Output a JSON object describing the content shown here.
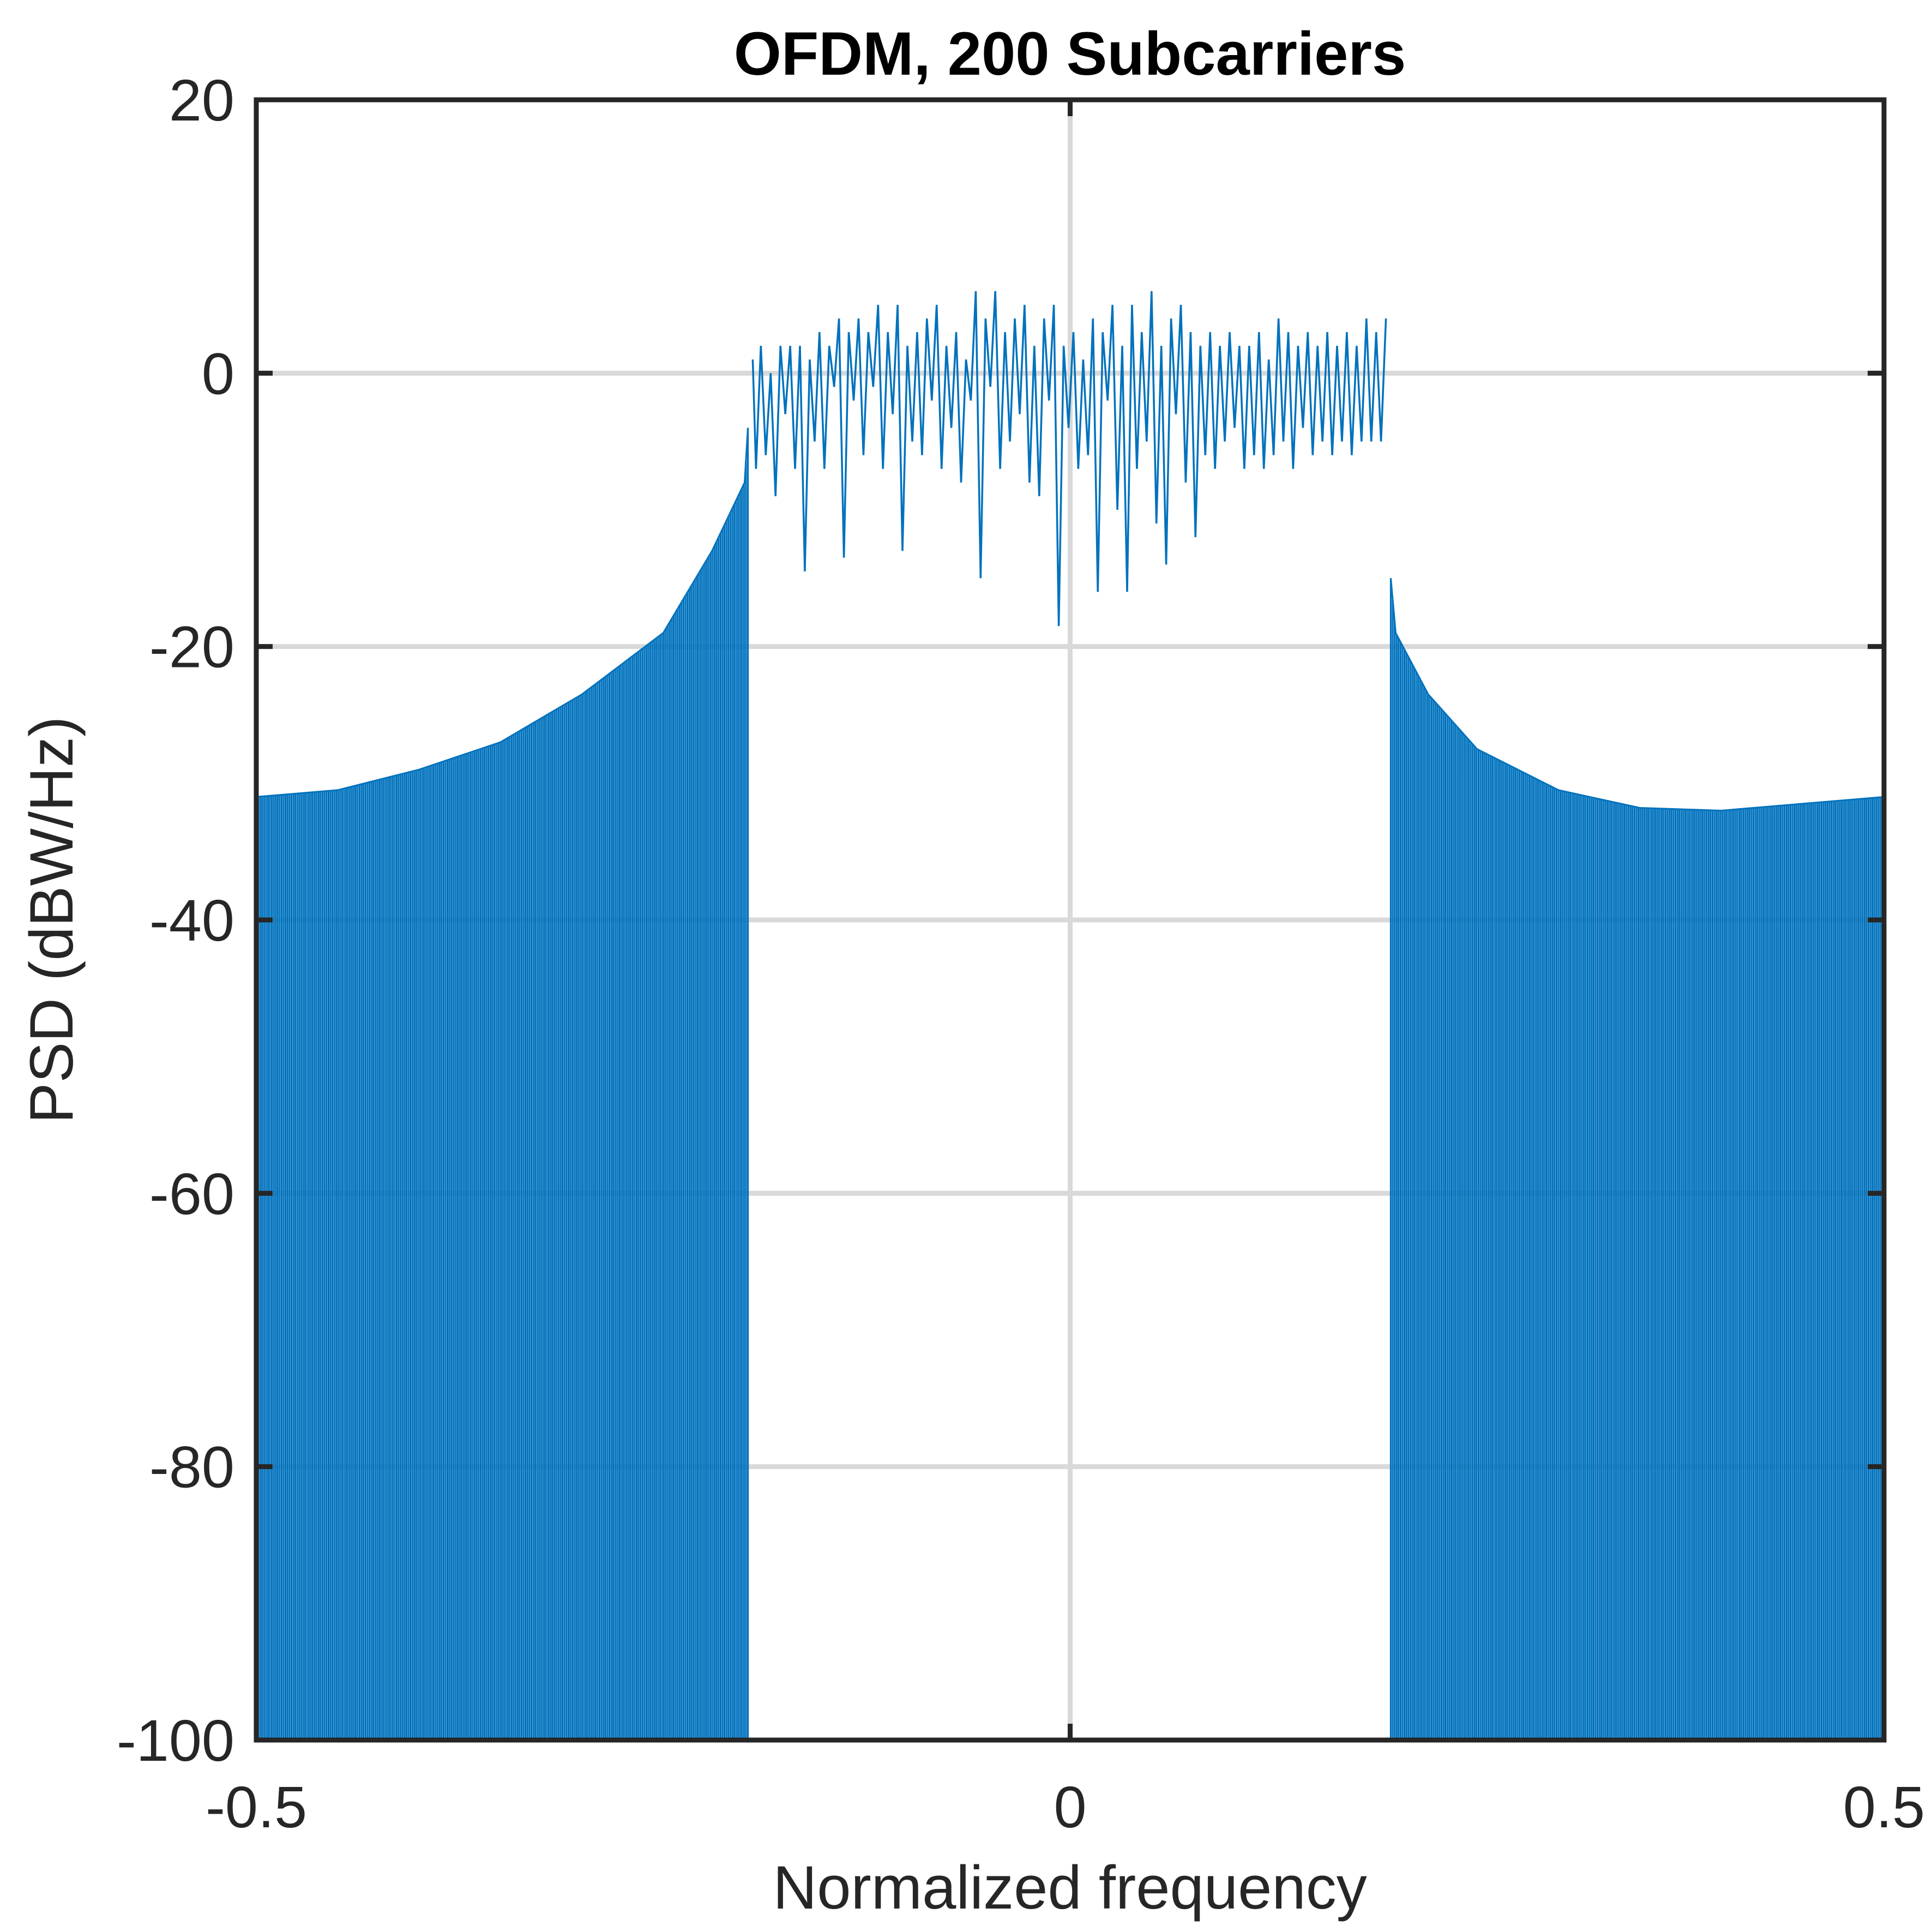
{
  "chart_data": {
    "type": "line",
    "title": "OFDM, 200 Subcarriers",
    "xlabel": "Normalized frequency",
    "ylabel": "PSD (dBW/Hz)",
    "xlim": [
      -0.5,
      0.5
    ],
    "ylim": [
      -100,
      20
    ],
    "xticks": [
      -0.5,
      0,
      0.5
    ],
    "xtick_labels": [
      "-0.5",
      "0",
      "0.5"
    ],
    "yticks": [
      20,
      0,
      -20,
      -40,
      -60,
      -80,
      -100
    ],
    "ytick_labels": [
      "20",
      "0",
      "-20",
      "-40",
      "-60",
      "-80",
      "-100"
    ],
    "grid": true,
    "series_color": "#0072BD",
    "series": [
      {
        "description": "passband (occupied subcarriers)",
        "x": [
          -0.195,
          -0.193,
          -0.19,
          -0.187,
          -0.184,
          -0.181,
          -0.178,
          -0.175,
          -0.172,
          -0.169,
          -0.166,
          -0.163,
          -0.16,
          -0.157,
          -0.154,
          -0.151,
          -0.148,
          -0.145,
          -0.142,
          -0.139,
          -0.136,
          -0.133,
          -0.13,
          -0.127,
          -0.124,
          -0.121,
          -0.118,
          -0.115,
          -0.112,
          -0.109,
          -0.106,
          -0.103,
          -0.1,
          -0.097,
          -0.094,
          -0.091,
          -0.088,
          -0.085,
          -0.082,
          -0.079,
          -0.076,
          -0.073,
          -0.07,
          -0.067,
          -0.064,
          -0.061,
          -0.058,
          -0.055,
          -0.052,
          -0.049,
          -0.046,
          -0.043,
          -0.04,
          -0.037,
          -0.034,
          -0.031,
          -0.028,
          -0.025,
          -0.022,
          -0.019,
          -0.016,
          -0.013,
          -0.01,
          -0.007,
          -0.004,
          -0.001,
          0.002,
          0.005,
          0.008,
          0.011,
          0.014,
          0.017,
          0.02,
          0.023,
          0.026,
          0.029,
          0.032,
          0.035,
          0.038,
          0.041,
          0.044,
          0.047,
          0.05,
          0.053,
          0.056,
          0.059,
          0.062,
          0.065,
          0.068,
          0.071,
          0.074,
          0.077,
          0.08,
          0.083,
          0.086,
          0.089,
          0.092,
          0.095,
          0.098,
          0.101,
          0.104,
          0.107,
          0.11,
          0.113,
          0.116,
          0.119,
          0.122,
          0.125,
          0.128,
          0.131,
          0.134,
          0.137,
          0.14,
          0.143,
          0.146,
          0.149,
          0.152,
          0.155,
          0.158,
          0.161,
          0.164,
          0.167,
          0.17,
          0.173,
          0.176,
          0.179,
          0.182,
          0.185,
          0.188,
          0.191,
          0.194
        ],
        "y": [
          1,
          -7,
          2,
          -6,
          0,
          -9,
          2,
          -3,
          2,
          -7,
          2,
          -14.5,
          1,
          -5,
          3,
          -7,
          2,
          -1,
          4,
          -13.5,
          3,
          -2,
          4,
          -6,
          3,
          -1,
          5,
          -7,
          3,
          -3,
          5,
          -13,
          2,
          -5,
          3,
          -6,
          4,
          -2,
          5,
          -7,
          2,
          -4,
          3,
          -8,
          1,
          -2,
          6,
          -15,
          4,
          -1,
          6,
          -7,
          3,
          -5,
          4,
          -3,
          5,
          -8,
          2,
          -9,
          4,
          -2,
          5,
          -18.5,
          2,
          -4,
          3,
          -7,
          1,
          -6,
          4,
          -16,
          3,
          -2,
          5,
          -10,
          2,
          -16,
          5,
          -7,
          3,
          -5,
          6,
          -11,
          2,
          -14,
          4,
          -3,
          5,
          -8,
          3,
          -12,
          2,
          -6,
          3,
          -7,
          2,
          -5,
          3,
          -4,
          2,
          -7,
          2,
          -6,
          3,
          -7,
          1,
          -6,
          4,
          -5,
          3,
          -7,
          2,
          -4,
          3,
          -6,
          2,
          -5,
          3,
          -6,
          2,
          -5,
          3,
          -6,
          2,
          -5,
          4,
          -5,
          3,
          -5,
          4
        ]
      },
      {
        "description": "left sidelobes (lower envelope at -100 dBW/Hz)",
        "x": [
          -0.5,
          -0.45,
          -0.4,
          -0.35,
          -0.3,
          -0.25,
          -0.22,
          -0.2,
          -0.198
        ],
        "y": [
          -31,
          -30.5,
          -29,
          -27,
          -23.5,
          -19,
          -13,
          -8,
          -4
        ]
      },
      {
        "description": "right sidelobes (lower envelope at -100 dBW/Hz)",
        "x": [
          0.197,
          0.2,
          0.22,
          0.25,
          0.3,
          0.35,
          0.4,
          0.45,
          0.5
        ],
        "y": [
          -15,
          -19,
          -23.5,
          -27.5,
          -30.5,
          -31.8,
          -32,
          -31.5,
          -31
        ]
      }
    ]
  }
}
